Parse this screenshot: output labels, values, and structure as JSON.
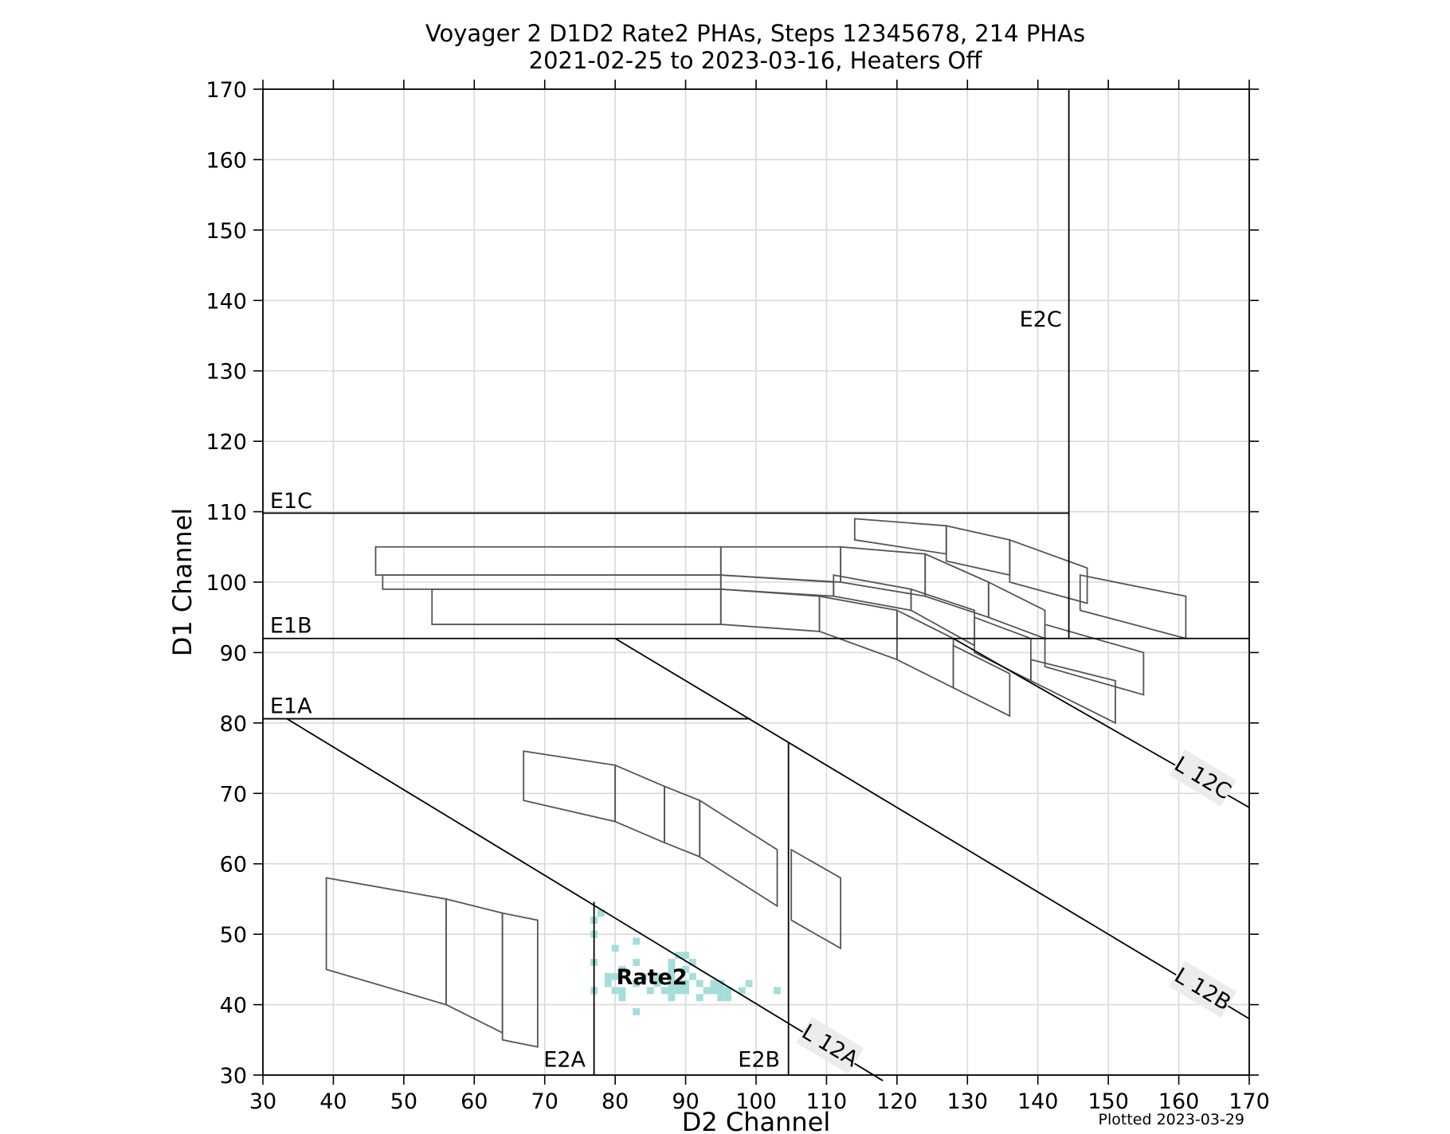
{
  "chart_data": {
    "type": "scatter",
    "title": "Voyager 2 D1D2 Rate2 PHAs, Steps 12345678, 214 PHAs",
    "subtitle": "2021-02-25 to 2023-03-16, Heaters Off",
    "xlabel": "D2 Channel",
    "ylabel": "D1 Channel",
    "xlim": [
      30,
      170
    ],
    "ylim": [
      30,
      170
    ],
    "xticks": [
      30,
      40,
      50,
      60,
      70,
      80,
      90,
      100,
      110,
      120,
      130,
      140,
      150,
      160,
      170
    ],
    "yticks": [
      30,
      40,
      50,
      60,
      70,
      80,
      90,
      100,
      110,
      120,
      130,
      140,
      150,
      160,
      170
    ],
    "grid": true,
    "footnote": "Plotted 2023-03-29",
    "pha_color": "#a6ddd8",
    "boundary_color": "#000000",
    "box_color": "#555555",
    "boundaries": [
      {
        "label": "E1C",
        "points": [
          [
            30,
            109.8
          ],
          [
            144.4,
            109.8
          ]
        ],
        "label_at": [
          31,
          110.5
        ]
      },
      {
        "label": "E1B",
        "points": [
          [
            30,
            92
          ],
          [
            170,
            92
          ]
        ],
        "label_at": [
          31,
          92.8
        ]
      },
      {
        "label": "E1A",
        "points": [
          [
            30,
            80.6
          ],
          [
            99.2,
            80.6
          ]
        ],
        "label_at": [
          31,
          81.4
        ]
      },
      {
        "label": "E2A",
        "points": [
          [
            77,
            30
          ],
          [
            77,
            54.6
          ]
        ],
        "label_at": [
          75.8,
          31.2
        ],
        "anchor": "end"
      },
      {
        "label": "E2B",
        "points": [
          [
            104.6,
            30
          ],
          [
            104.6,
            77.2
          ]
        ],
        "label_at": [
          103.4,
          31.2
        ],
        "anchor": "end"
      },
      {
        "label": "E2C",
        "points": [
          [
            144.4,
            92
          ],
          [
            144.4,
            170
          ]
        ],
        "label_at": [
          143.4,
          136.3
        ],
        "anchor": "end"
      },
      {
        "label": "",
        "points": [
          [
            33.4,
            80.6
          ],
          [
            118,
            29.2
          ]
        ]
      },
      {
        "label": "",
        "points": [
          [
            80,
            92
          ],
          [
            170,
            38
          ]
        ]
      },
      {
        "label": "",
        "points": [
          [
            128,
            92
          ],
          [
            170,
            68
          ]
        ]
      }
    ],
    "line_labels": [
      {
        "text": "L 12A",
        "at": [
          110.5,
          34.2
        ],
        "angle": 31
      },
      {
        "text": "L 12B",
        "at": [
          163.4,
          42.2
        ],
        "angle": 31
      },
      {
        "text": "L 12C",
        "at": [
          163.4,
          72.2
        ],
        "angle": 31
      }
    ],
    "rate_label": {
      "text": "Rate2",
      "at": [
        85.2,
        44
      ]
    },
    "boxes": [
      [
        [
          39,
          58
        ],
        [
          56,
          55
        ],
        [
          56,
          40
        ],
        [
          39,
          45
        ]
      ],
      [
        [
          56,
          55
        ],
        [
          64,
          53
        ],
        [
          64,
          36
        ],
        [
          56,
          40
        ]
      ],
      [
        [
          64,
          53
        ],
        [
          69,
          52
        ],
        [
          69,
          34
        ],
        [
          64,
          35
        ]
      ],
      [
        [
          67,
          76
        ],
        [
          80,
          74
        ],
        [
          80,
          66
        ],
        [
          67,
          69
        ]
      ],
      [
        [
          80,
          74
        ],
        [
          87,
          71
        ],
        [
          87,
          63
        ],
        [
          80,
          66
        ]
      ],
      [
        [
          87,
          71
        ],
        [
          92,
          69
        ],
        [
          92,
          61
        ],
        [
          87,
          63
        ]
      ],
      [
        [
          92,
          69
        ],
        [
          103,
          62
        ],
        [
          103,
          54
        ],
        [
          92,
          61
        ]
      ],
      [
        [
          105,
          62
        ],
        [
          112,
          58
        ],
        [
          112,
          48
        ],
        [
          105,
          52
        ]
      ],
      [
        [
          46,
          105
        ],
        [
          95,
          105
        ],
        [
          95,
          101
        ],
        [
          46,
          101
        ]
      ],
      [
        [
          47,
          101
        ],
        [
          95,
          101
        ],
        [
          95,
          99
        ],
        [
          47,
          99
        ]
      ],
      [
        [
          54,
          99
        ],
        [
          95,
          99
        ],
        [
          95,
          94
        ],
        [
          54,
          94
        ]
      ],
      [
        [
          95,
          105
        ],
        [
          112,
          105
        ],
        [
          112,
          100
        ],
        [
          95,
          101
        ]
      ],
      [
        [
          95,
          101
        ],
        [
          111,
          100
        ],
        [
          111,
          98
        ],
        [
          95,
          99
        ]
      ],
      [
        [
          95,
          99
        ],
        [
          109,
          98
        ],
        [
          109,
          93
        ],
        [
          95,
          94
        ]
      ],
      [
        [
          112,
          105
        ],
        [
          124,
          104
        ],
        [
          124,
          98
        ],
        [
          112,
          100
        ]
      ],
      [
        [
          111,
          101
        ],
        [
          122,
          99
        ],
        [
          122,
          96
        ],
        [
          111,
          98
        ]
      ],
      [
        [
          109,
          98
        ],
        [
          120,
          96
        ],
        [
          120,
          89
        ],
        [
          109,
          93
        ]
      ],
      [
        [
          124,
          104
        ],
        [
          133,
          100
        ],
        [
          133,
          95
        ],
        [
          124,
          98
        ]
      ],
      [
        [
          122,
          99
        ],
        [
          131,
          96
        ],
        [
          131,
          91
        ],
        [
          122,
          96
        ]
      ],
      [
        [
          120,
          96
        ],
        [
          128,
          92
        ],
        [
          128,
          85
        ],
        [
          120,
          89
        ]
      ],
      [
        [
          133,
          100
        ],
        [
          141,
          96
        ],
        [
          141,
          92
        ],
        [
          133,
          95
        ]
      ],
      [
        [
          131,
          95
        ],
        [
          139,
          92
        ],
        [
          139,
          86
        ],
        [
          131,
          90
        ]
      ],
      [
        [
          128,
          91
        ],
        [
          136,
          87
        ],
        [
          136,
          81
        ],
        [
          128,
          85
        ]
      ],
      [
        [
          114,
          109
        ],
        [
          127,
          108
        ],
        [
          127,
          104
        ],
        [
          114,
          106
        ]
      ],
      [
        [
          127,
          108
        ],
        [
          136,
          106
        ],
        [
          136,
          101
        ],
        [
          127,
          103
        ]
      ],
      [
        [
          136,
          106
        ],
        [
          147,
          102
        ],
        [
          147,
          97
        ],
        [
          136,
          100
        ]
      ],
      [
        [
          146,
          101
        ],
        [
          161,
          98
        ],
        [
          161,
          92
        ],
        [
          146,
          96
        ]
      ],
      [
        [
          141,
          94
        ],
        [
          155,
          90
        ],
        [
          155,
          84
        ],
        [
          141,
          88
        ]
      ],
      [
        [
          139,
          89
        ],
        [
          151,
          86
        ],
        [
          151,
          80
        ],
        [
          139,
          86
        ]
      ]
    ],
    "pha_points": [
      [
        78,
        53
      ],
      [
        77,
        52
      ],
      [
        77,
        50
      ],
      [
        83,
        49
      ],
      [
        80,
        48
      ],
      [
        77,
        46
      ],
      [
        83,
        46
      ],
      [
        88,
        46
      ],
      [
        89,
        47
      ],
      [
        90,
        47
      ],
      [
        91,
        46
      ],
      [
        81,
        45
      ],
      [
        88,
        45
      ],
      [
        90,
        45
      ],
      [
        79,
        44
      ],
      [
        80,
        44
      ],
      [
        84,
        44
      ],
      [
        86,
        44
      ],
      [
        88,
        44
      ],
      [
        91,
        44
      ],
      [
        79,
        43
      ],
      [
        83,
        43
      ],
      [
        86,
        43
      ],
      [
        88,
        43
      ],
      [
        89,
        43
      ],
      [
        90,
        43
      ],
      [
        92,
        43
      ],
      [
        94,
        43
      ],
      [
        95,
        43
      ],
      [
        99,
        43
      ],
      [
        77,
        42
      ],
      [
        80,
        42
      ],
      [
        81,
        42
      ],
      [
        85,
        42
      ],
      [
        87,
        42
      ],
      [
        88,
        42
      ],
      [
        89,
        42
      ],
      [
        90,
        42
      ],
      [
        93,
        42
      ],
      [
        94,
        42
      ],
      [
        95,
        42
      ],
      [
        96,
        42
      ],
      [
        98,
        42
      ],
      [
        103,
        42
      ],
      [
        81,
        41
      ],
      [
        88,
        41
      ],
      [
        92,
        41
      ],
      [
        95,
        41
      ],
      [
        96,
        41
      ],
      [
        83,
        39
      ]
    ]
  }
}
